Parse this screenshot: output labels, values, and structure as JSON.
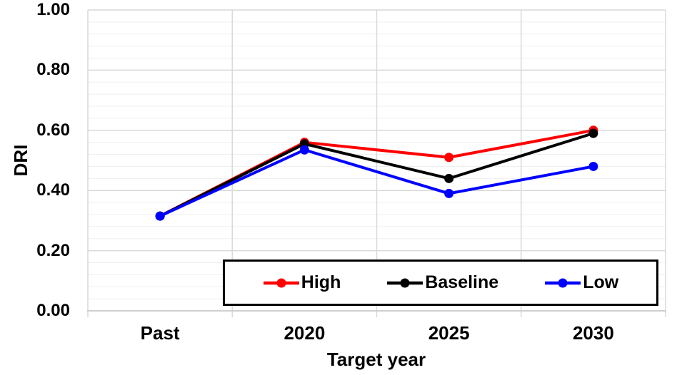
{
  "chart_data": {
    "type": "line",
    "categories": [
      "Past",
      "2020",
      "2025",
      "2030"
    ],
    "series": [
      {
        "name": "High",
        "color": "#ff0000",
        "values": [
          0.315,
          0.56,
          0.51,
          0.6
        ]
      },
      {
        "name": "Baseline",
        "color": "#000000",
        "values": [
          0.315,
          0.555,
          0.44,
          0.59
        ]
      },
      {
        "name": "Low",
        "color": "#0000ff",
        "values": [
          0.315,
          0.535,
          0.39,
          0.48
        ]
      }
    ],
    "title": "",
    "xlabel": "Target year",
    "ylabel": "DRI",
    "ylim": [
      0,
      1
    ],
    "ytick_labels": [
      "0.00",
      "0.20",
      "0.40",
      "0.60",
      "0.80",
      "1.00"
    ],
    "y_major_unit": 0.2,
    "y_minor_unit": 0.04,
    "grid": "horizontal major and minor lines, vertical lines at category boundaries",
    "legend_position": "bottom-center boxed"
  }
}
